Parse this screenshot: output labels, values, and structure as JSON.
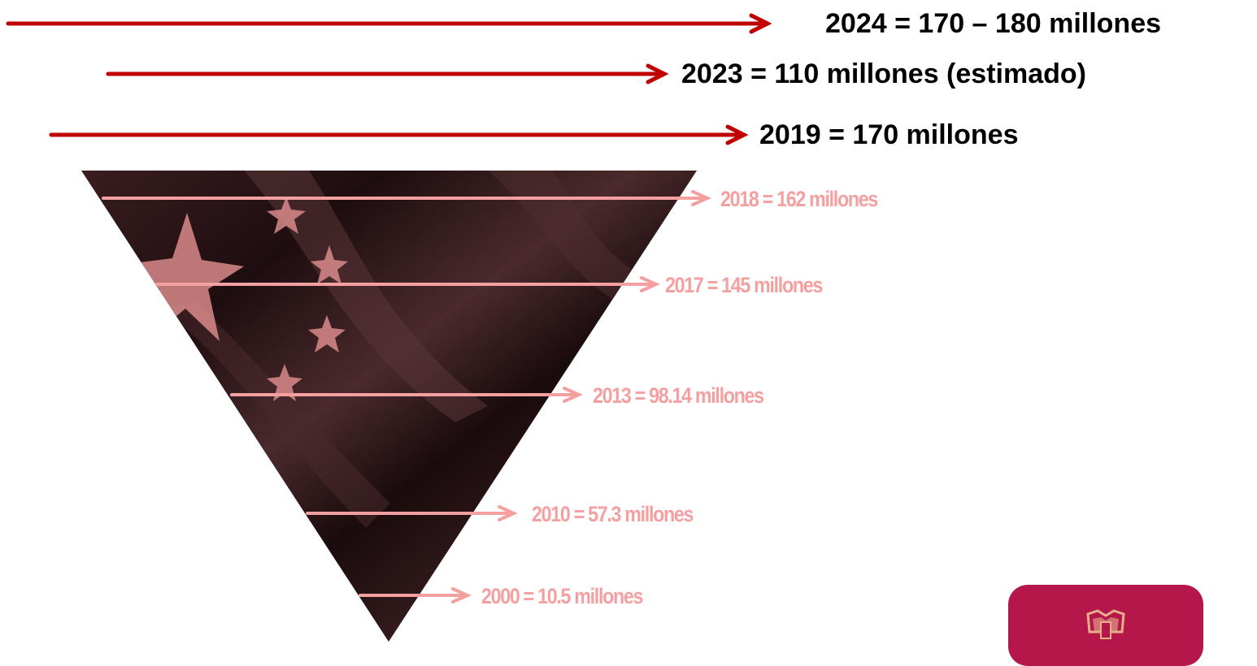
{
  "top_labels": {
    "y2024": "2024 = 170 – 180  millones",
    "y2023": "2023 = 110 millones (estimado)",
    "y2019": "2019 = 170 millones"
  },
  "funnel_labels": {
    "y2018": "2018 =  162 millones",
    "y2017": "2017 =  145 millones",
    "y2013": "2013 =  98.14 millones",
    "y2010": "2010 =  57.3 millones",
    "y2000": "2000 = 10.5 millones"
  },
  "colors": {
    "dark_arrow": "#c00000",
    "pink": "#f4a0a0",
    "funnel_dark": "#2a1416",
    "logo_bg": "#b5174b",
    "logo_emblem": "#e8b08a"
  },
  "icons": {
    "funnel": "inverted-triangle-flag",
    "logo": "crest-logo-icon"
  }
}
